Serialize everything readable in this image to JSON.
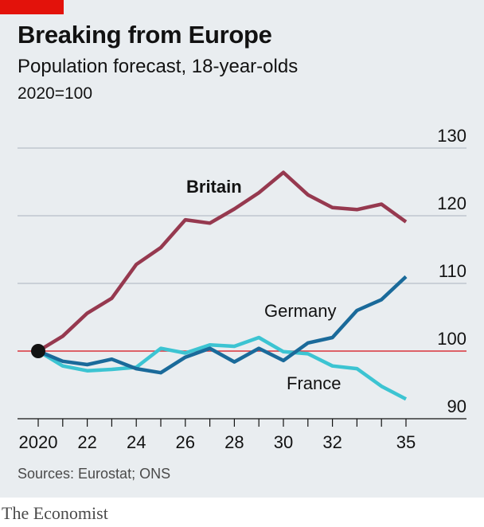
{
  "header": {
    "title": "Breaking from Europe",
    "subtitle": "Population forecast, 18-year-olds",
    "unit": "2020=100"
  },
  "footer": {
    "source": "Sources: Eurostat; ONS",
    "brand": "The Economist"
  },
  "colors": {
    "background": "#e9edf0",
    "accent": "#e3120b",
    "britain": "#96394f",
    "germany": "#1a6a9a",
    "france": "#3cc4d2",
    "baseline": "#d9333a",
    "grid": "#b7c0c8"
  },
  "chart_data": {
    "type": "line",
    "title": "Breaking from Europe",
    "subtitle": "Population forecast, 18-year-olds",
    "unit_note": "2020=100",
    "x": [
      2020,
      2021,
      2022,
      2023,
      2024,
      2025,
      2026,
      2027,
      2028,
      2029,
      2030,
      2031,
      2032,
      2033,
      2034,
      2035
    ],
    "x_tick_values": [
      2020,
      2022,
      2024,
      2026,
      2028,
      2030,
      2032,
      2035
    ],
    "x_tick_labels": [
      "2020",
      "22",
      "24",
      "26",
      "28",
      "30",
      "32",
      "35"
    ],
    "xlim": [
      2020,
      2035
    ],
    "y_ticks": [
      90,
      100,
      110,
      120,
      130
    ],
    "ylim": [
      90,
      130
    ],
    "y_axis_position": "right",
    "grid": true,
    "reference_line": 100,
    "series": [
      {
        "name": "Britain",
        "color": "#96394f",
        "values": [
          100,
          102.2,
          105.6,
          107.8,
          112.8,
          115.3,
          119.4,
          118.9,
          121.0,
          123.4,
          126.4,
          123.1,
          121.2,
          120.9,
          121.7,
          119.1
        ]
      },
      {
        "name": "Germany",
        "color": "#1a6a9a",
        "values": [
          100,
          98.5,
          98.0,
          98.8,
          97.4,
          96.8,
          99.1,
          100.4,
          98.4,
          100.4,
          98.6,
          101.2,
          102.0,
          106.0,
          107.6,
          111.0
        ]
      },
      {
        "name": "France",
        "color": "#3cc4d2",
        "values": [
          100,
          97.8,
          97.1,
          97.3,
          97.6,
          100.4,
          99.7,
          100.9,
          100.7,
          102.0,
          99.9,
          99.6,
          97.8,
          97.4,
          94.8,
          92.9
        ]
      }
    ]
  }
}
